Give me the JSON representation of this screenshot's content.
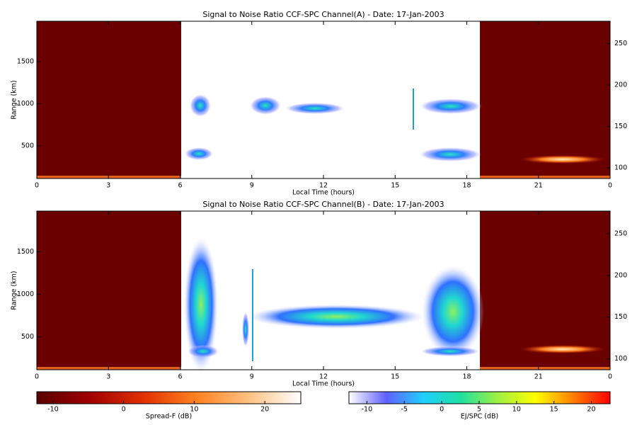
{
  "chart_data": [
    {
      "type": "heatmap",
      "title": "Signal to Noise Ratio CCF-SPC Channel(A) - Date: 17-Jan-2003",
      "xlabel": "Local Time (hours)",
      "ylabel": "Range (km)",
      "xlim": [
        0,
        24
      ],
      "xticks": [
        0,
        3,
        6,
        9,
        12,
        15,
        18,
        21,
        {
          "value": 24,
          "label": "0"
        }
      ],
      "ylim": [
        113,
        1979
      ],
      "yticks": [
        500,
        1000,
        1500
      ],
      "y2lim": [
        87,
        277
      ],
      "y2ticks": [
        100,
        150,
        200,
        250
      ]
    },
    {
      "type": "heatmap",
      "title": "Signal to Noise Ratio CCF-SPC Channel(B) - Date: 17-Jan-2003",
      "xlabel": "Local Time (hours)",
      "ylabel": "Range (km)",
      "xlim": [
        0,
        24
      ],
      "xticks": [
        0,
        3,
        6,
        9,
        12,
        15,
        18,
        21,
        {
          "value": 24,
          "label": "0"
        }
      ],
      "ylim": [
        113,
        1979
      ],
      "yticks": [
        500,
        1000,
        1500
      ],
      "y2lim": [
        87,
        277
      ],
      "y2ticks": [
        100,
        150,
        200,
        250
      ]
    }
  ],
  "colorbars": [
    {
      "label": "Spread-F (dB)",
      "lim": [
        -12.3,
        25.1
      ],
      "ticks": [
        -10,
        0,
        10,
        20
      ],
      "colors": [
        "#5a0000",
        "#a00000",
        "#e03000",
        "#ff8020",
        "#ffc080",
        "#ffffff"
      ]
    },
    {
      "label": "EJ/SPC (dB)",
      "lim": [
        -12.4,
        22.5
      ],
      "ticks": [
        -10,
        -5,
        0,
        5,
        10,
        15,
        20
      ],
      "colors": [
        "#ffffff",
        "#6060ff",
        "#20d0ff",
        "#20e0a0",
        "#a0f040",
        "#ffff00",
        "#ff8000",
        "#ff0000"
      ]
    }
  ]
}
